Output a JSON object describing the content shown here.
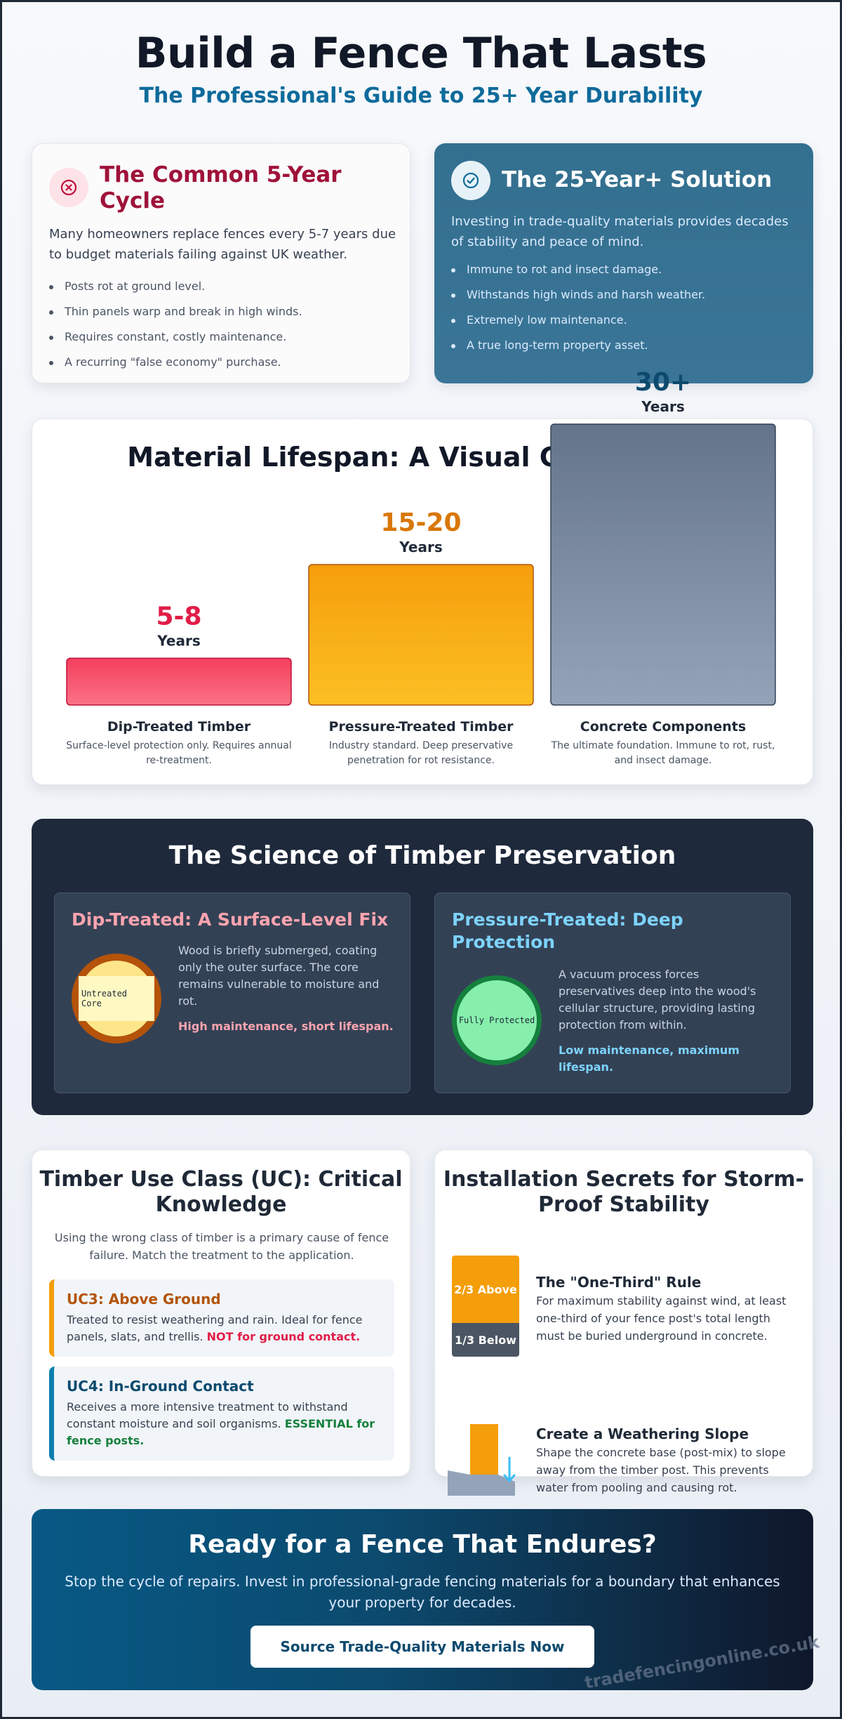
{
  "header": {
    "title": "Build a Fence That Lasts",
    "subtitle": "The Professional's Guide to 25+ Year Durability"
  },
  "problem": {
    "icon": "x-circle-icon",
    "title": "The Common 5-Year Cycle",
    "description": "Many homeowners replace fences every 5-7 years due to budget materials failing against UK weather.",
    "items": [
      "Posts rot at ground level.",
      "Thin panels warp and break in high winds.",
      "Requires constant, costly maintenance.",
      "A recurring \"false economy\" purchase."
    ]
  },
  "solution": {
    "icon": "check-circle-icon",
    "title": "The 25-Year+ Solution",
    "description": "Investing in trade-quality materials provides decades of stability and peace of mind.",
    "items": [
      "Immune to rot and insect damage.",
      "Withstands high winds and harsh weather.",
      "Extremely low maintenance.",
      "A true long-term property asset."
    ]
  },
  "chart_data": {
    "type": "bar",
    "title": "Material Lifespan: A Visual Comparison",
    "ylabel": "Years",
    "categories": [
      "Dip-Treated Timber",
      "Pressure-Treated Timber",
      "Concrete Components"
    ],
    "value_labels": [
      "5-8",
      "15-20",
      "30+"
    ],
    "values": [
      5,
      15,
      30
    ],
    "unit": "Years",
    "descriptions": [
      "Surface-level protection only. Requires annual re-treatment.",
      "Industry standard. Deep preservative penetration for rot resistance.",
      "The ultimate foundation. Immune to rot, rust, and insect damage."
    ],
    "colors": [
      "#f43f5e",
      "#f59e0b",
      "#64748b"
    ],
    "label_colors": [
      "#e11d48",
      "#d97706",
      "#0c4a6e"
    ],
    "ylim": [
      0,
      30
    ],
    "grid": false
  },
  "science": {
    "title": "The Science of Timber Preservation",
    "dip": {
      "title": "Dip-Treated: A Surface-Level Fix",
      "graphic_label": "Untreated Core",
      "text": "Wood is briefly submerged, coating only the outer surface. The core remains vulnerable to moisture and rot.",
      "note": "High maintenance, short lifespan."
    },
    "pressure": {
      "title": "Pressure-Treated: Deep Protection",
      "graphic_label": "Fully Protected",
      "text": "A vacuum process forces preservatives deep into the wood's cellular structure, providing lasting protection from within.",
      "note": "Low maintenance, maximum lifespan."
    }
  },
  "use_class": {
    "title": "Timber Use Class (UC): Critical Knowledge",
    "intro": "Using the wrong class of timber is a primary cause of fence failure. Match the treatment to the application.",
    "uc3": {
      "title": "UC3: Above Ground",
      "text": "Treated to resist weathering and rain. Ideal for fence panels, slats, and trellis.",
      "warning": "NOT for ground contact."
    },
    "uc4": {
      "title": "UC4: In-Ground Contact",
      "text": "Receives a more intensive treatment to withstand constant moisture and soil organisms.",
      "emphasis": "ESSENTIAL for fence posts."
    }
  },
  "installation": {
    "title": "Installation Secrets for Storm-Proof Stability",
    "rule": {
      "above_label": "2/3 Above",
      "below_label": "1/3 Below",
      "title": "The \"One-Third\" Rule",
      "text": "For maximum stability against wind, at least one-third of your fence post's total length must be buried underground in concrete."
    },
    "slope": {
      "icon": "arrow-down-icon",
      "title": "Create a Weathering Slope",
      "text": "Shape the concrete base (post-mix) to slope away from the timber post. This prevents water from pooling and causing rot."
    }
  },
  "cta": {
    "title": "Ready for a Fence That Endures?",
    "text": "Stop the cycle of repairs. Invest in professional-grade fencing materials for a boundary that enhances your property for decades.",
    "button_label": "Source Trade-Quality Materials Now"
  },
  "watermark": "tradefencingonline.co.uk"
}
